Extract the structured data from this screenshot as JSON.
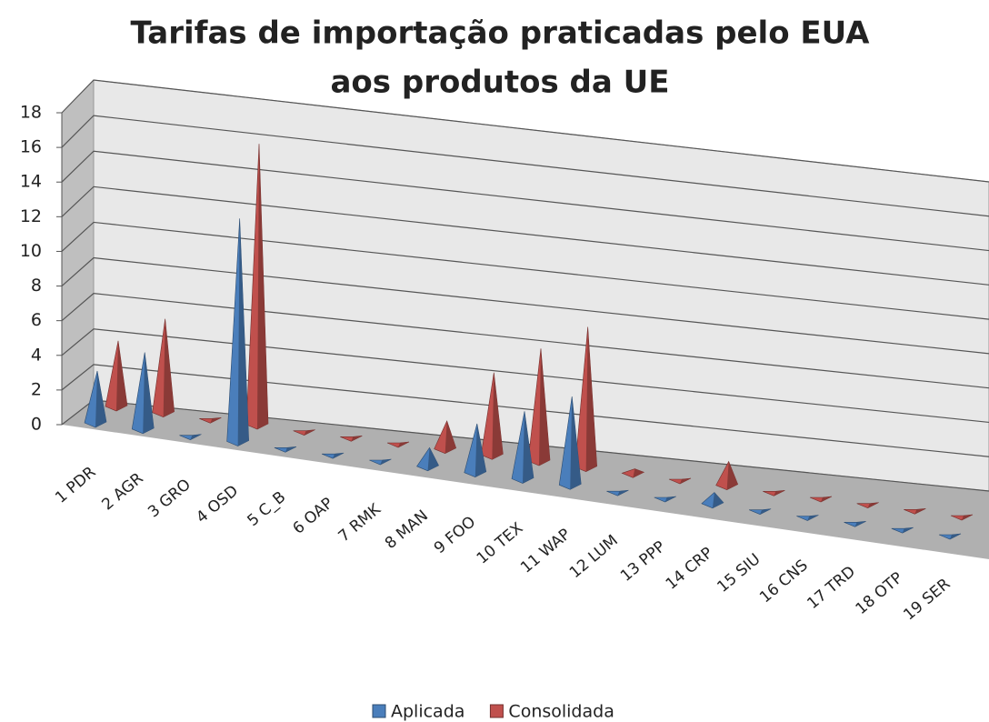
{
  "chart_data": {
    "type": "bar3d-pyramid",
    "title": [
      "Tarifas  de importação praticadas pelo EUA",
      "aos produtos da UE"
    ],
    "categories": [
      "1 PDR",
      "2 AGR",
      "3 GRO",
      "4 OSD",
      "5 C_B",
      "6 OAP",
      "7 RMK",
      "8 MAN",
      "9 FOO",
      "10 TEX",
      "11 WAP",
      "12 LUM",
      "13 PPP",
      "14 CRP",
      "15 SIU",
      "16 CNS",
      "17 TRD",
      "18 OTP",
      "19 SER"
    ],
    "series": [
      {
        "name": "Aplicada",
        "color": "#4a7ebb",
        "values": [
          3,
          4.5,
          0,
          13.5,
          0,
          0,
          0,
          1.2,
          3.2,
          4.5,
          6,
          0,
          0,
          0.8,
          0,
          0,
          0,
          0,
          0
        ]
      },
      {
        "name": "Consolidada",
        "color": "#c0504d",
        "values": [
          3.8,
          5.5,
          0,
          17,
          0,
          0,
          0,
          1.8,
          5.4,
          7.5,
          9.5,
          0.3,
          0,
          1.7,
          0,
          0,
          0,
          0,
          0
        ]
      }
    ],
    "ylim": [
      0,
      18
    ],
    "yticks": [
      0,
      2,
      4,
      6,
      8,
      10,
      12,
      14,
      16,
      18
    ],
    "grid": true,
    "legend": "bottom"
  }
}
